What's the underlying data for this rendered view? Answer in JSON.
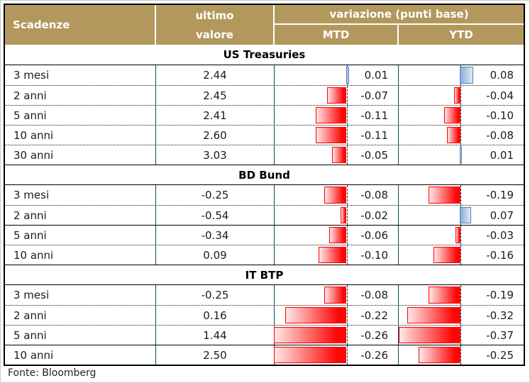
{
  "header": {
    "maturity": "Scadenze",
    "last_line1": "ultimo",
    "last_line2": "valore",
    "variation": "variazione (punti base)",
    "mtd": "MTD",
    "ytd": "YTD"
  },
  "chart_data": {
    "type": "table",
    "columns": [
      "Scadenze",
      "ultimo valore",
      "variazione (punti base) MTD",
      "variazione (punti base) YTD"
    ],
    "bar_note": "negative variations drawn as red bars left of dashed zero axis, positive as blue bars right of axis",
    "sections": [
      {
        "title": "US Treasuries",
        "rows": [
          {
            "label": "3 mesi",
            "last": "2.44",
            "mtd": "0.01",
            "ytd": "0.08"
          },
          {
            "label": "2 anni",
            "last": "2.45",
            "mtd": "-0.07",
            "ytd": "-0.04"
          },
          {
            "label": "5 anni",
            "last": "2.41",
            "mtd": "-0.11",
            "ytd": "-0.10"
          },
          {
            "label": "10 anni",
            "last": "2.60",
            "mtd": "-0.11",
            "ytd": "-0.08"
          },
          {
            "label": "30 anni",
            "last": "3.03",
            "mtd": "-0.05",
            "ytd": "0.01"
          }
        ]
      },
      {
        "title": "BD Bund",
        "rows": [
          {
            "label": "3 mesi",
            "last": "-0.25",
            "mtd": "-0.08",
            "ytd": "-0.19"
          },
          {
            "label": "2 anni",
            "last": "-0.54",
            "mtd": "-0.02",
            "ytd": "0.07"
          },
          {
            "label": "5 anni",
            "last": "-0.34",
            "mtd": "-0.06",
            "ytd": "-0.03"
          },
          {
            "label": "10 anni",
            "last": "0.09",
            "mtd": "-0.10",
            "ytd": "-0.16"
          }
        ]
      },
      {
        "title": "IT BTP",
        "rows": [
          {
            "label": "3 mesi",
            "last": "-0.25",
            "mtd": "-0.08",
            "ytd": "-0.19"
          },
          {
            "label": "2 anni",
            "last": "0.16",
            "mtd": "-0.22",
            "ytd": "-0.32"
          },
          {
            "label": "5 anni",
            "last": "1.44",
            "mtd": "-0.26",
            "ytd": "-0.37"
          },
          {
            "label": "10 anni",
            "last": "2.50",
            "mtd": "-0.26",
            "ytd": "-0.25"
          }
        ]
      }
    ]
  },
  "footer": {
    "source": "Fonte: Bloomberg"
  },
  "colors": {
    "header_bg": "#B2985C",
    "header_text": "#FFFFFF",
    "grid_line": "#0D4A5E",
    "negative_bar": "#FF0000",
    "positive_bar": "#4F81BD"
  }
}
